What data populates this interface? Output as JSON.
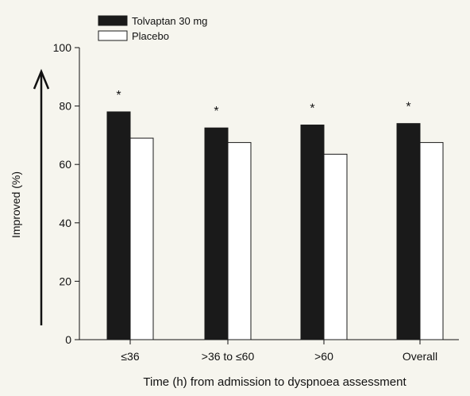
{
  "chart_data": {
    "type": "bar",
    "categories": [
      "≤36",
      ">36 to ≤60",
      ">60",
      "Overall"
    ],
    "series": [
      {
        "name": "Tolvaptan 30 mg",
        "values": [
          78,
          72.5,
          73.5,
          74
        ],
        "color": "#1a1a1a"
      },
      {
        "name": "Placebo",
        "values": [
          69,
          67.5,
          63.5,
          67.5
        ],
        "color": "#ffffff"
      }
    ],
    "significance_marks": [
      "*",
      "*",
      "*",
      "*"
    ],
    "xlabel": "Time (h) from admission to dyspnoea assessment",
    "ylabel": "Improved (%)",
    "ylim": [
      0,
      100
    ],
    "yticks": [
      0,
      20,
      40,
      60,
      80,
      100
    ],
    "grid": false,
    "legend_position": "top-left",
    "background_color": "#f6f5ee",
    "axis_arrow": "up"
  }
}
